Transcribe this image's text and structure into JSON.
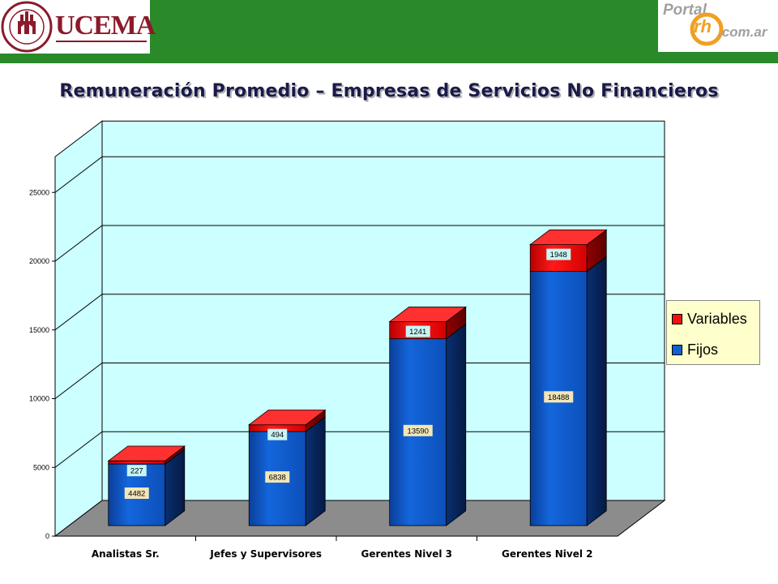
{
  "header": {
    "left_logo_text": "UCEMA",
    "left_seal_text": "UNIVERSIDAD DEL CEMA",
    "left_seal_year": "MCMXCVIII",
    "right_logo_text": "Portal",
    "right_logo_domain": ".com.ar",
    "right_logo_mark": "rh",
    "banner_color": "#2a8a2a"
  },
  "title": "Remuneración Promedio – Empresas de Servicios No Financieros",
  "chart_data": {
    "type": "bar",
    "stacked": true,
    "style": "3d",
    "categories": [
      "Analistas Sr.",
      "Jefes y Supervisores",
      "Gerentes Nivel 3",
      "Gerentes Nivel 2"
    ],
    "series": [
      {
        "name": "Fijos",
        "values": [
          4482,
          6838,
          13590,
          18488
        ],
        "color": "#1060d0"
      },
      {
        "name": "Variables",
        "values": [
          227,
          494,
          1241,
          1948
        ],
        "color": "#ee1010"
      }
    ],
    "ylim": [
      0,
      25000
    ],
    "yticks": [
      0,
      5000,
      10000,
      15000,
      20000,
      25000
    ],
    "grid": true,
    "legend_position": "right",
    "wall_color": "#ccffff",
    "floor_color": "#8c8c8c"
  }
}
